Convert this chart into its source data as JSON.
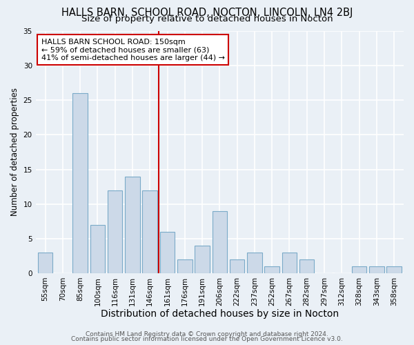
{
  "title": "HALLS BARN, SCHOOL ROAD, NOCTON, LINCOLN, LN4 2BJ",
  "subtitle": "Size of property relative to detached houses in Nocton",
  "xlabel": "Distribution of detached houses by size in Nocton",
  "ylabel": "Number of detached properties",
  "bar_labels": [
    "55sqm",
    "70sqm",
    "85sqm",
    "100sqm",
    "116sqm",
    "131sqm",
    "146sqm",
    "161sqm",
    "176sqm",
    "191sqm",
    "206sqm",
    "222sqm",
    "237sqm",
    "252sqm",
    "267sqm",
    "282sqm",
    "297sqm",
    "312sqm",
    "328sqm",
    "343sqm",
    "358sqm"
  ],
  "bar_values": [
    3,
    0,
    26,
    7,
    12,
    14,
    12,
    6,
    2,
    4,
    9,
    2,
    3,
    1,
    3,
    2,
    0,
    0,
    1,
    1,
    1
  ],
  "bar_color": "#ccd9e8",
  "bar_edge_color": "#7aaac8",
  "reference_line_index": 6,
  "reference_line_color": "#cc0000",
  "annotation_line1": "HALLS BARN SCHOOL ROAD: 150sqm",
  "annotation_line2": "← 59% of detached houses are smaller (63)",
  "annotation_line3": "41% of semi-detached houses are larger (44) →",
  "annotation_box_facecolor": "#ffffff",
  "annotation_box_edgecolor": "#cc0000",
  "ylim": [
    0,
    35
  ],
  "yticks": [
    0,
    5,
    10,
    15,
    20,
    25,
    30,
    35
  ],
  "footer_line1": "Contains HM Land Registry data © Crown copyright and database right 2024.",
  "footer_line2": "Contains public sector information licensed under the Open Government Licence v3.0.",
  "background_color": "#eaf0f6",
  "grid_color": "#ffffff",
  "title_fontsize": 10.5,
  "subtitle_fontsize": 9.5,
  "xlabel_fontsize": 10,
  "ylabel_fontsize": 8.5,
  "tick_fontsize": 7.5,
  "annotation_fontsize": 8,
  "footer_fontsize": 6.5
}
